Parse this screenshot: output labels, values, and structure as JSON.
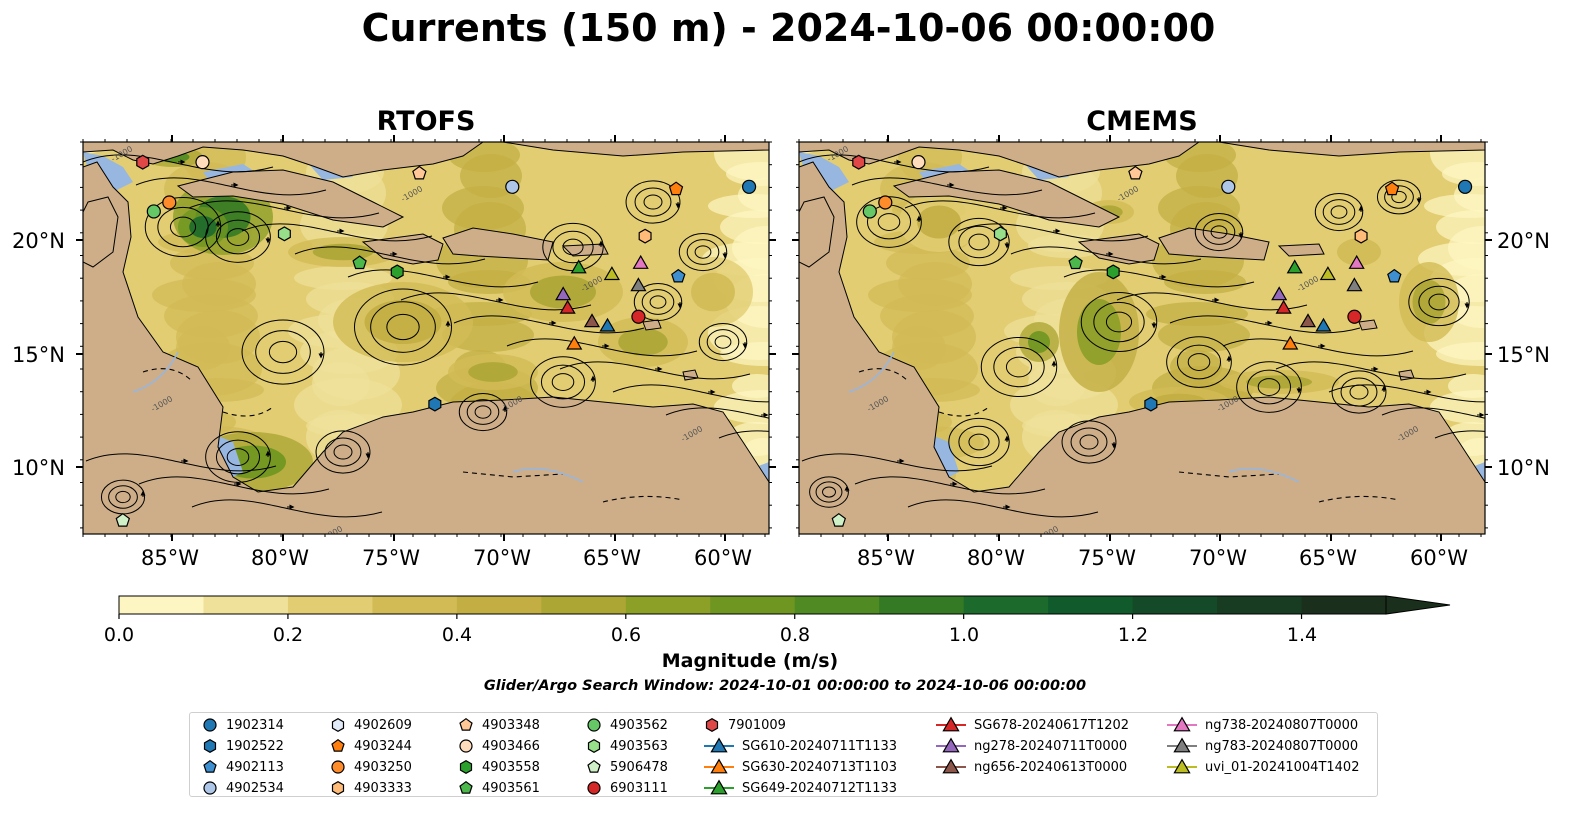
{
  "title": "Currents (150 m) - 2024-10-06 00:00:00",
  "panels": [
    {
      "title": "RTOFS"
    },
    {
      "title": "CMEMS"
    }
  ],
  "map": {
    "lat_ticks": [
      "20°N",
      "15°N",
      "10°N"
    ],
    "lon_ticks": [
      "85°W",
      "80°W",
      "75°W",
      "70°W",
      "65°W",
      "60°W"
    ],
    "extent_lon": [
      -89,
      -58
    ],
    "extent_lat": [
      7,
      24.5
    ],
    "land_color": "#cdae88",
    "shelf_color": "#97b6e0",
    "contour_label": "-1000"
  },
  "colorbar": {
    "label": "Magnitude (m/s)",
    "ticks": [
      "0.0",
      "0.2",
      "0.4",
      "0.6",
      "0.8",
      "1.0",
      "1.2",
      "1.4"
    ],
    "range": [
      0,
      1.5
    ],
    "extend": "max",
    "colors": [
      "#fdf6c2",
      "#f0e19a",
      "#e2cd73",
      "#d2bb55",
      "#c2ae42",
      "#aca635",
      "#8c9f27",
      "#6e9620",
      "#4f8b22",
      "#347a24",
      "#1c6a2c",
      "#105a2c",
      "#144a28",
      "#183c22",
      "#1b301c"
    ]
  },
  "search_window": "Glider/Argo Search Window: 2024-10-01 00:00:00 to 2024-10-06 00:00:00",
  "legend": [
    {
      "label": "1902314",
      "marker": "circle",
      "color": "#1f77b4"
    },
    {
      "label": "1902522",
      "marker": "hexagon",
      "color": "#1f77b4"
    },
    {
      "label": "4902113",
      "marker": "pentagon",
      "color": "#3d8fcf"
    },
    {
      "label": "4902534",
      "marker": "circle",
      "color": "#aec7e8"
    },
    {
      "label": "4902609",
      "marker": "hexagon",
      "color": "#e2ecf8"
    },
    {
      "label": "4903244",
      "marker": "pentagon",
      "color": "#ff7f0e"
    },
    {
      "label": "4903250",
      "marker": "circle",
      "color": "#ff8c2a"
    },
    {
      "label": "4903333",
      "marker": "hexagon",
      "color": "#ffbb78"
    },
    {
      "label": "4903348",
      "marker": "pentagon",
      "color": "#ffc896"
    },
    {
      "label": "4903466",
      "marker": "circle",
      "color": "#ffdcbb"
    },
    {
      "label": "4903558",
      "marker": "hexagon",
      "color": "#2ca02c"
    },
    {
      "label": "4903561",
      "marker": "pentagon",
      "color": "#4cb84c"
    },
    {
      "label": "4903562",
      "marker": "circle",
      "color": "#66c766"
    },
    {
      "label": "4903563",
      "marker": "hexagon",
      "color": "#98df8a"
    },
    {
      "label": "5906478",
      "marker": "pentagon",
      "color": "#d0f0c8"
    },
    {
      "label": "6903111",
      "marker": "circle",
      "color": "#d62728"
    },
    {
      "label": "7901009",
      "marker": "hexagon",
      "color": "#e04848"
    },
    {
      "label": "SG610-20240711T1133",
      "marker": "triangle-line",
      "color": "#1f77b4"
    },
    {
      "label": "SG630-20240713T1103",
      "marker": "triangle-line",
      "color": "#ff7f0e"
    },
    {
      "label": "SG649-20240712T1133",
      "marker": "triangle-line",
      "color": "#2ca02c"
    },
    {
      "label": "SG678-20240617T1202",
      "marker": "triangle-line",
      "color": "#d62728"
    },
    {
      "label": "ng278-20240711T0000",
      "marker": "triangle-line",
      "color": "#9467bd"
    },
    {
      "label": "ng656-20240613T0000",
      "marker": "triangle-line",
      "color": "#8c564b"
    },
    {
      "label": "ng738-20240807T0000",
      "marker": "triangle-line",
      "color": "#e377c2"
    },
    {
      "label": "ng783-20240807T0000",
      "marker": "triangle-line",
      "color": "#7f7f7f"
    },
    {
      "label": "uvi_01-20241004T1402",
      "marker": "triangle-line",
      "color": "#bcbd22"
    }
  ],
  "platform_positions": [
    {
      "id": "7901009",
      "lon": -86.3,
      "lat": 23.6
    },
    {
      "id": "4903466",
      "lon": -83.6,
      "lat": 23.6
    },
    {
      "id": "4903348",
      "lon": -73.8,
      "lat": 23.1
    },
    {
      "id": "4902534",
      "lon": -69.6,
      "lat": 22.5
    },
    {
      "id": "1902314",
      "lon": -58.9,
      "lat": 22.5
    },
    {
      "id": "4903244",
      "lon": -62.2,
      "lat": 22.4
    },
    {
      "id": "4903250",
      "lon": -85.1,
      "lat": 21.8
    },
    {
      "id": "4903562",
      "lon": -85.8,
      "lat": 21.4
    },
    {
      "id": "4903563",
      "lon": -79.9,
      "lat": 20.4
    },
    {
      "id": "4903333",
      "lon": -63.6,
      "lat": 20.3
    },
    {
      "id": "4903561",
      "lon": -76.5,
      "lat": 19.1
    },
    {
      "id": "4903558",
      "lon": -74.8,
      "lat": 18.7
    },
    {
      "id": "4902113",
      "lon": -62.1,
      "lat": 18.5
    },
    {
      "id": "6903111",
      "lon": -63.9,
      "lat": 16.7
    },
    {
      "id": "1902522",
      "lon": -73.1,
      "lat": 12.8
    },
    {
      "id": "5906478",
      "lon": -87.2,
      "lat": 7.6
    },
    {
      "id": "SG649-20240712T1133",
      "lon": -66.6,
      "lat": 18.9
    },
    {
      "id": "uvi_01-20241004T1402",
      "lon": -65.1,
      "lat": 18.6
    },
    {
      "id": "ng738-20240807T0000",
      "lon": -63.8,
      "lat": 19.1
    },
    {
      "id": "ng783-20240807T0000",
      "lon": -63.9,
      "lat": 18.1
    },
    {
      "id": "ng278-20240711T0000",
      "lon": -67.3,
      "lat": 17.7
    },
    {
      "id": "SG678-20240617T1202",
      "lon": -67.1,
      "lat": 17.1
    },
    {
      "id": "ng656-20240613T0000",
      "lon": -66.0,
      "lat": 16.5
    },
    {
      "id": "SG610-20240711T1133",
      "lon": -65.3,
      "lat": 16.3
    },
    {
      "id": "SG630-20240713T1103",
      "lon": -66.8,
      "lat": 15.5
    }
  ]
}
